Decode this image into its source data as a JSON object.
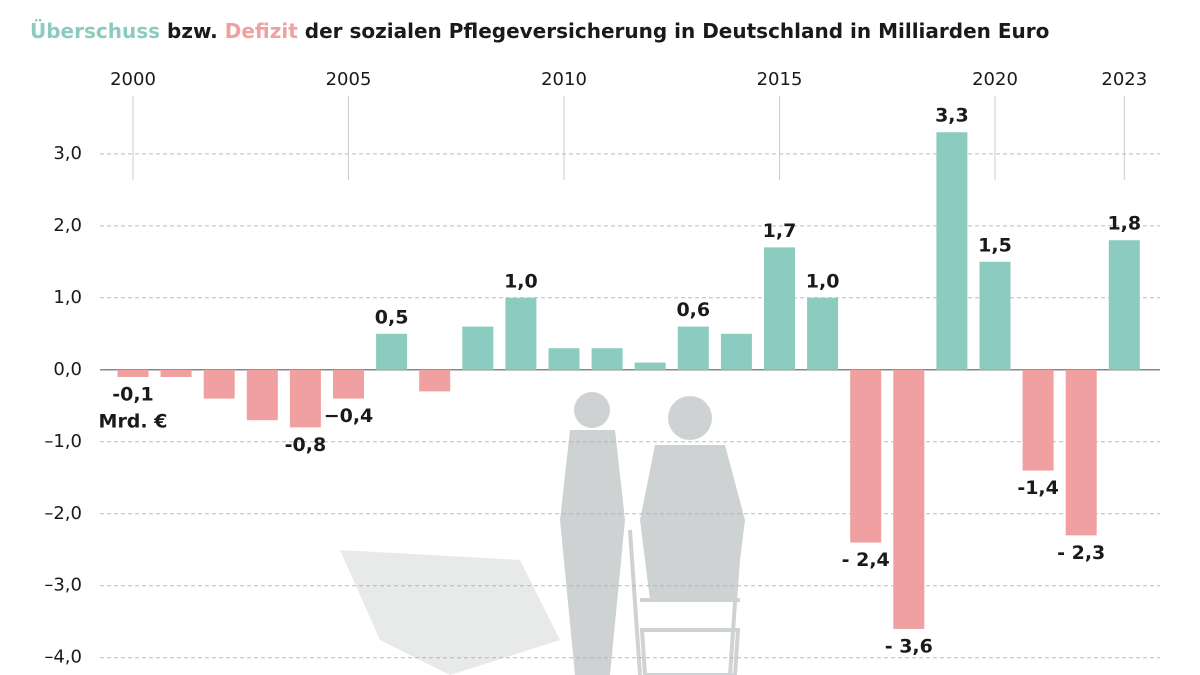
{
  "chart_data": {
    "type": "bar",
    "subtitle_joiner": "bzw.",
    "subtitle": "der sozialen Pflegeversicherung in Deutschland in Milliarden Euro",
    "unit_label": "Mrd. €",
    "categories": [
      "2000",
      null,
      null,
      null,
      null,
      "2005",
      null,
      null,
      null,
      null,
      "2010",
      null,
      null,
      null,
      null,
      "2015",
      null,
      null,
      null,
      null,
      "2020",
      null,
      null,
      "2023"
    ],
    "series": [
      {
        "name": "Überschuss",
        "color": "#8ccbbf",
        "values": [
          null,
          null,
          null,
          null,
          null,
          null,
          0.5,
          null,
          0.6,
          1.0,
          0.3,
          0.3,
          0.1,
          0.6,
          0.5,
          1.7,
          1.0,
          null,
          null,
          3.3,
          1.5,
          null,
          null,
          1.8
        ],
        "value_labels": [
          null,
          null,
          null,
          null,
          null,
          null,
          "0,5",
          null,
          null,
          "1,0",
          null,
          null,
          null,
          "0,6",
          null,
          "1,7",
          "1,0",
          null,
          null,
          "3,3",
          "1,5",
          null,
          null,
          "1,8"
        ]
      },
      {
        "name": "Defizit",
        "color": "#f0a0a0",
        "values": [
          -0.1,
          -0.1,
          -0.4,
          -0.7,
          -0.8,
          -0.4,
          null,
          -0.3,
          null,
          null,
          null,
          null,
          null,
          null,
          null,
          null,
          null,
          -2.4,
          -3.6,
          null,
          null,
          -1.4,
          -2.3,
          null
        ],
        "value_labels": [
          "-0,1",
          null,
          null,
          null,
          "-0,8",
          "−0,4",
          null,
          null,
          null,
          null,
          null,
          null,
          null,
          null,
          null,
          null,
          null,
          "- 2,4",
          "- 3,6",
          null,
          null,
          "-1,4",
          "- 2,3",
          null
        ]
      }
    ],
    "ylim": [
      -4.24,
      3.72
    ],
    "yticks": [
      {
        "value": 3,
        "label": "3,0"
      },
      {
        "value": 2,
        "label": "2,0"
      },
      {
        "value": 1,
        "label": "1,0"
      },
      {
        "value": 0,
        "label": "0,0"
      },
      {
        "value": -1,
        "label": "–1,0"
      },
      {
        "value": -2,
        "label": "–2,0"
      },
      {
        "value": -3,
        "label": "–3,0"
      },
      {
        "value": -4,
        "label": "–4,0"
      }
    ],
    "grid": true
  }
}
